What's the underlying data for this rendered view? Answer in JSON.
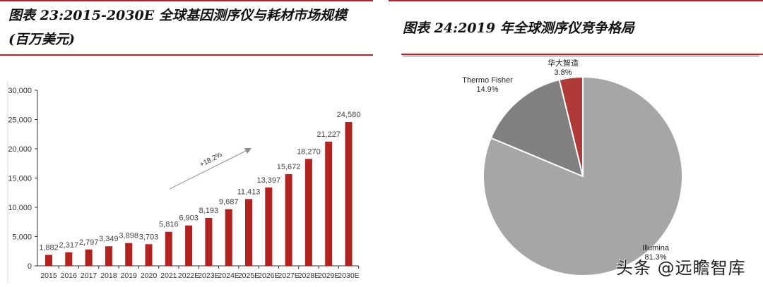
{
  "left_panel": {
    "title_line1": "图表 23:2015-2030E 全球基因测序仪与耗材市场规模",
    "title_line2": "(百万美元)"
  },
  "right_panel": {
    "title": "图表 24:2019 年全球测序仪竞争格局"
  },
  "watermark": "头条 @远瞻智库",
  "colors": {
    "bar": "#b2221f",
    "rule": "#b8242c",
    "illumina": "#a6a6a6",
    "thermo": "#808080",
    "mgi": "#b03a38"
  },
  "chart_data": [
    {
      "type": "bar",
      "title": "图表 23:2015-2030E 全球基因测序仪与耗材市场规模(百万美元)",
      "xlabel": "",
      "ylabel": "",
      "ylim": [
        0,
        30000
      ],
      "yticks": [
        "0",
        "5,000",
        "10,000",
        "15,000",
        "20,000",
        "25,000",
        "30,000"
      ],
      "categories": [
        "2015",
        "2016",
        "2017",
        "2018",
        "2019",
        "2020",
        "2021",
        "2022E",
        "2023E",
        "2024E",
        "2025E",
        "2026E",
        "2027E",
        "2028E",
        "2029E",
        "2030E"
      ],
      "values": [
        1882,
        2317,
        2797,
        3349,
        3898,
        3703,
        5816,
        6903,
        8193,
        9687,
        11413,
        13397,
        15672,
        18270,
        21227,
        24580
      ],
      "value_labels": [
        "1,882",
        "2,317",
        "2,797",
        "3,349",
        "3,898",
        "3,703",
        "5,816",
        "6,903",
        "8,193",
        "9,687",
        "11,413",
        "13,397",
        "15,672",
        "18,270",
        "21,227",
        "24,580"
      ],
      "annotation": "+18.2%",
      "grid": false,
      "legend": "none"
    },
    {
      "type": "pie",
      "title": "图表 24:2019 年全球测序仪竞争格局",
      "slices": [
        {
          "label": "Illumina",
          "value": 81.3,
          "label_text": "81.3%"
        },
        {
          "label": "Thermo Fisher",
          "value": 14.9,
          "label_text": "14.9%"
        },
        {
          "label": "华大智造",
          "value": 3.8,
          "label_text": "3.8%"
        }
      ],
      "legend": "none"
    }
  ]
}
